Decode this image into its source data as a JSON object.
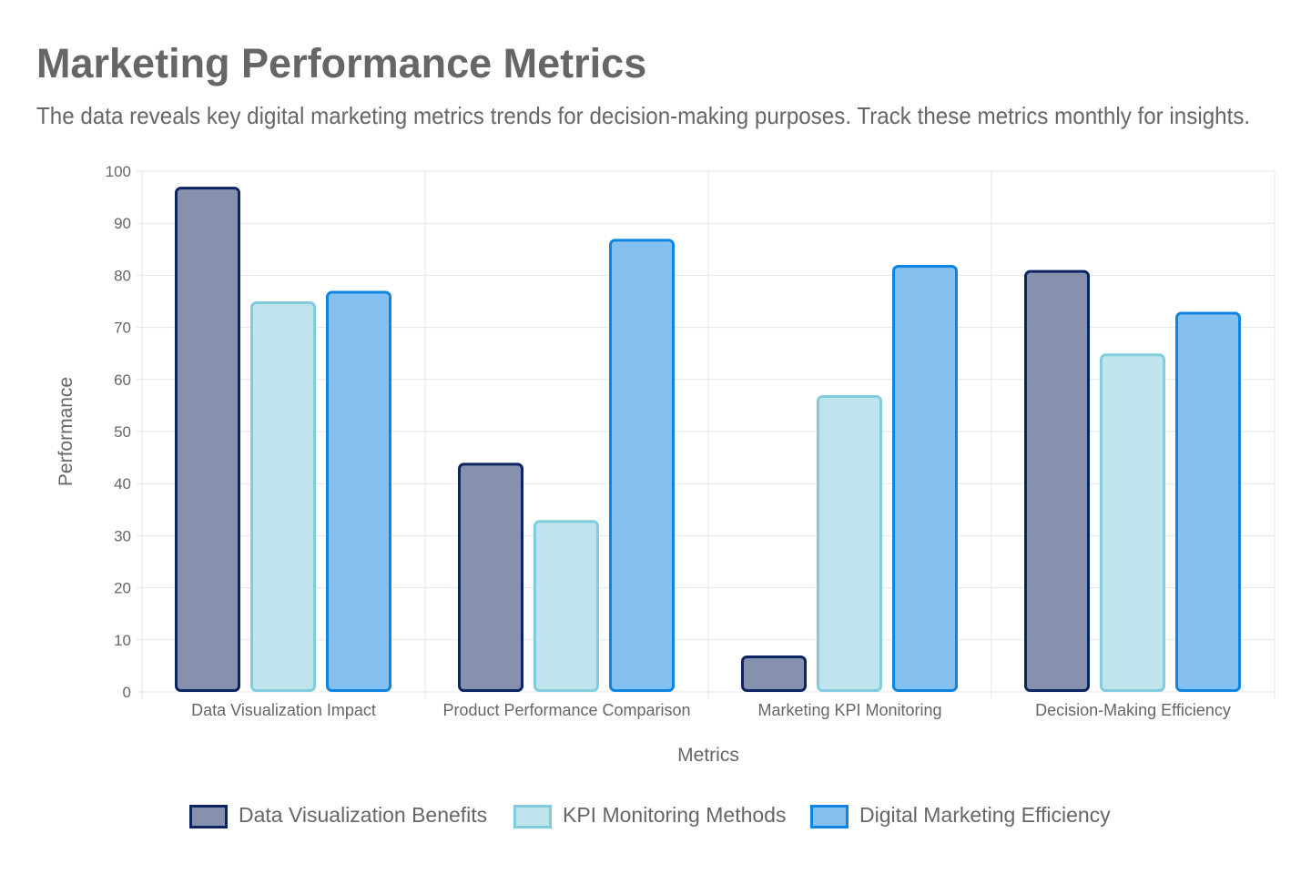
{
  "title": "Marketing Performance Metrics",
  "subtitle": "The data reveals key digital marketing metrics trends for decision-making purposes. Track these metrics monthly for insights.",
  "chart_data": {
    "type": "bar",
    "categories": [
      "Data Visualization Impact",
      "Product Performance Comparison",
      "Marketing KPI Monitoring",
      "Decision-Making Efficiency"
    ],
    "series": [
      {
        "name": "Data Visualization Benefits",
        "values": [
          97,
          44,
          7,
          81
        ],
        "fill": "#8691ad",
        "stroke": "#0d2463"
      },
      {
        "name": "KPI Monitoring Methods",
        "values": [
          75,
          33,
          57,
          65
        ],
        "fill": "#c0e4ed",
        "stroke": "#82cddd"
      },
      {
        "name": "Digital Marketing Efficiency",
        "values": [
          77,
          87,
          82,
          73
        ],
        "fill": "#84c0f0",
        "stroke": "#0f85e3"
      }
    ],
    "xlabel": "Metrics",
    "ylabel": "Performance",
    "ylim": [
      0,
      100
    ],
    "yticks": [
      "0",
      "10",
      "20",
      "30",
      "40",
      "50",
      "60",
      "70",
      "80",
      "90",
      "100"
    ],
    "grid": true,
    "legend": "bottom"
  }
}
